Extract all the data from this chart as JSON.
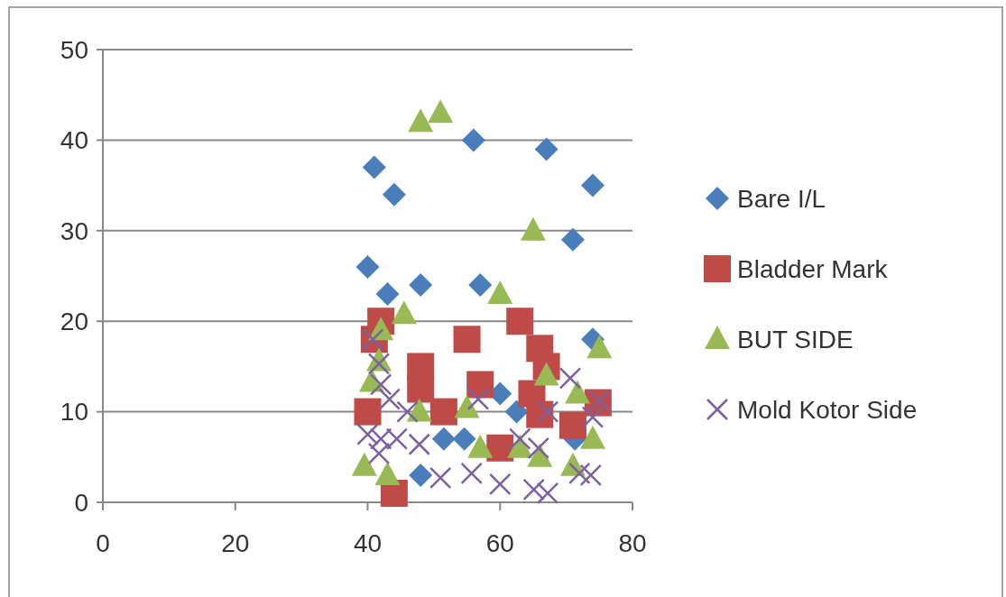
{
  "chart_data": {
    "type": "scatter",
    "xlim": [
      0,
      80
    ],
    "xticks": [
      0,
      20,
      40,
      60,
      80
    ],
    "ylim": [
      0,
      50
    ],
    "yticks": [
      0,
      10,
      20,
      30,
      40,
      50
    ],
    "grid": "y",
    "legend": "right",
    "series": [
      {
        "name": "Bare I/L",
        "color": "#4a7ebb",
        "marker": "diamond",
        "x": [
          40,
          41,
          43,
          44,
          48,
          48,
          51.5,
          54.6,
          56,
          57,
          60,
          62.5,
          67,
          71,
          71.3,
          74,
          74
        ],
        "values": [
          26,
          37,
          23,
          34,
          24,
          3,
          7,
          7,
          40,
          24,
          12,
          10,
          39,
          29,
          7,
          35,
          18
        ]
      },
      {
        "name": "Bladder Mark",
        "color": "#be4b48",
        "marker": "square",
        "x": [
          40,
          41,
          42,
          44,
          48,
          48,
          51.5,
          55,
          57,
          60,
          63,
          64.8,
          66,
          66,
          67,
          71,
          74.8
        ],
        "values": [
          10,
          18,
          20,
          1,
          15,
          12.5,
          10,
          18,
          13,
          6,
          20,
          12,
          17,
          9.7,
          15,
          8.5,
          11
        ]
      },
      {
        "name": "BUT SIDE",
        "color": "#98b954",
        "marker": "triangle",
        "x": [
          39.5,
          40.6,
          41.7,
          42,
          43,
          45.5,
          47.8,
          48,
          51,
          55,
          57,
          60,
          63,
          65,
          66,
          67,
          71,
          71.7,
          74,
          75
        ],
        "values": [
          4,
          13.3,
          15.6,
          19,
          3,
          20.8,
          10,
          42,
          43,
          10.4,
          6,
          23,
          6,
          30,
          5,
          14,
          4,
          12,
          7,
          17
        ]
      },
      {
        "name": "Mold Kotor Side",
        "color": "#7d60a0",
        "marker": "cross",
        "x": [
          40,
          40.8,
          41.7,
          41.7,
          42,
          42,
          43.3,
          44.4,
          46,
          47.8,
          51,
          55.7,
          56.7,
          60,
          63,
          65.1,
          65.8,
          67.2,
          67.2,
          70.6,
          72,
          73.7,
          74,
          75
        ],
        "values": [
          7.5,
          18,
          15.3,
          5.4,
          13,
          7,
          11.4,
          7,
          10,
          6.4,
          2.7,
          3.2,
          11.4,
          2,
          7,
          1.4,
          6,
          1,
          10,
          13.7,
          3.2,
          3,
          9.4,
          11.2
        ]
      }
    ]
  }
}
